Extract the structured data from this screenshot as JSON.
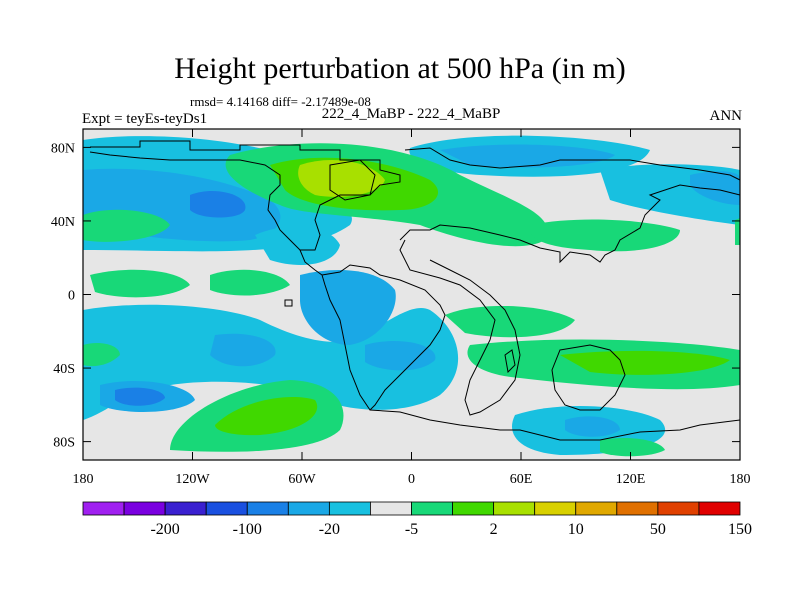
{
  "title": "Height perturbation at 500 hPa (in m)",
  "stats": "rmsd= 4.14168 diff= -2.17489e-08",
  "experiment": "Expt = teyEs-teyDs1",
  "case": "222_4_MaBP - 222_4_MaBP",
  "season": "ANN",
  "map": {
    "lon_range": [
      -180,
      180
    ],
    "lat_range": [
      -90,
      90
    ],
    "lat_ticks": [
      {
        "value": 80,
        "label": "80N"
      },
      {
        "value": 40,
        "label": "40N"
      },
      {
        "value": 0,
        "label": "0"
      },
      {
        "value": -40,
        "label": "40S"
      },
      {
        "value": -80,
        "label": "80S"
      }
    ],
    "lon_ticks": [
      {
        "value": -180,
        "label": "180"
      },
      {
        "value": -120,
        "label": "120W"
      },
      {
        "value": -60,
        "label": "60W"
      },
      {
        "value": 0,
        "label": "0"
      },
      {
        "value": 60,
        "label": "60E"
      },
      {
        "value": 120,
        "label": "120E"
      },
      {
        "value": 180,
        "label": "180"
      }
    ]
  },
  "colorbar": {
    "colors": [
      "#a020f0",
      "#7a00e0",
      "#3a20d0",
      "#1a50e0",
      "#1a80e6",
      "#1aa8e6",
      "#18c0e0",
      "#e6e6e6",
      "#18d878",
      "#40d800",
      "#a8e000",
      "#d8d000",
      "#e0a800",
      "#e07000",
      "#e04000",
      "#e00000"
    ],
    "labels": [
      {
        "after_box": 2,
        "text": "-200"
      },
      {
        "after_box": 4,
        "text": "-100"
      },
      {
        "after_box": 6,
        "text": "-20"
      },
      {
        "after_box": 8,
        "text": "-5"
      },
      {
        "after_box": 10,
        "text": "2"
      },
      {
        "after_box": 12,
        "text": "10"
      },
      {
        "after_box": 14,
        "text": "50"
      },
      {
        "after_box": 16,
        "text": "150"
      }
    ]
  },
  "field_colors": {
    "background": "#e6e6e6",
    "neg_light": "#18c0e0",
    "neg_mid": "#1aa8e6",
    "neg_dark": "#1a80e6",
    "pos_light": "#18d878",
    "pos_mid": "#40d800",
    "pos_strong": "#a8e000"
  }
}
